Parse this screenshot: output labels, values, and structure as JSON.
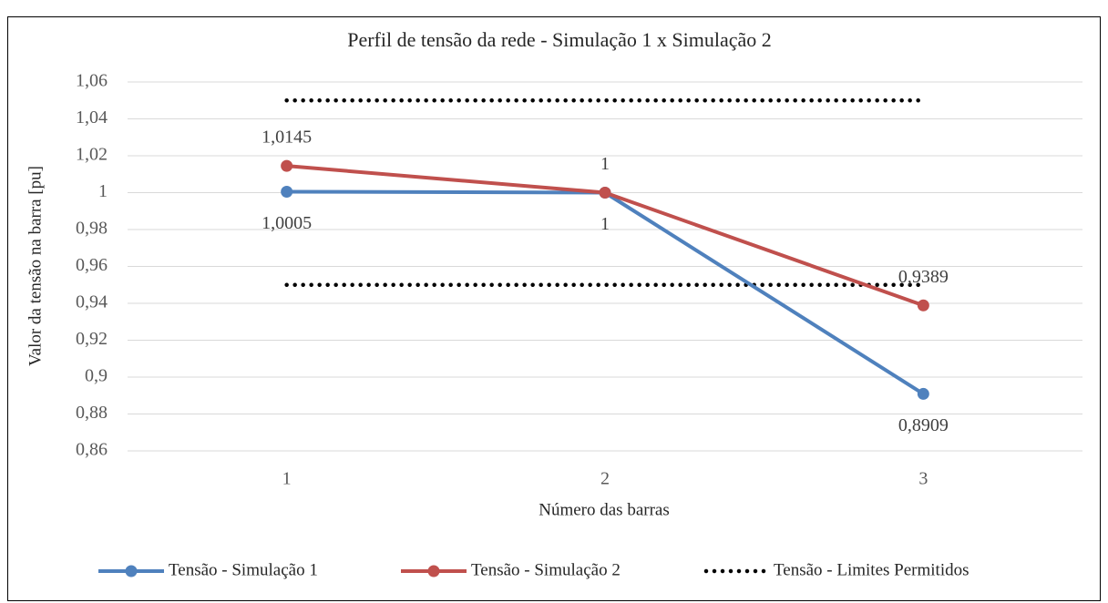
{
  "chart_data": {
    "type": "line",
    "title": "Perfil de tensão da rede - Simulação 1 x Simulação 2",
    "x_label": "Número das barras",
    "y_label": "Valor da tensão na barra [pu]",
    "categories": [
      "1",
      "2",
      "3"
    ],
    "series": [
      {
        "name": "Tensão - Simulação 1",
        "color": "#4f81bd",
        "values": [
          1.0005,
          1,
          0.8909
        ],
        "value_labels": [
          "1,0005",
          "1",
          "0,8909"
        ],
        "label_position": "below"
      },
      {
        "name": "Tensão - Simulação 2",
        "color": "#c0504d",
        "values": [
          1.0145,
          1,
          0.9389
        ],
        "value_labels": [
          "1,0145",
          "1",
          "0,9389"
        ],
        "label_position": "above"
      }
    ],
    "limits": {
      "name": "Tensão - Limites Permitidos",
      "color": "#000000",
      "values": [
        1.05,
        0.95
      ]
    },
    "ylim": [
      0.86,
      1.06
    ],
    "yticks": [
      {
        "value": 0.86,
        "label": "0,86"
      },
      {
        "value": 0.88,
        "label": "0,88"
      },
      {
        "value": 0.9,
        "label": "0,9"
      },
      {
        "value": 0.92,
        "label": "0,92"
      },
      {
        "value": 0.94,
        "label": "0,94"
      },
      {
        "value": 0.96,
        "label": "0,96"
      },
      {
        "value": 0.98,
        "label": "0,98"
      },
      1,
      {
        "value": 1.02,
        "label": "1,02"
      },
      {
        "value": 1.04,
        "label": "1,04"
      },
      {
        "value": 1.06,
        "label": "1,06"
      }
    ],
    "grid": true,
    "legend": "bottom"
  }
}
